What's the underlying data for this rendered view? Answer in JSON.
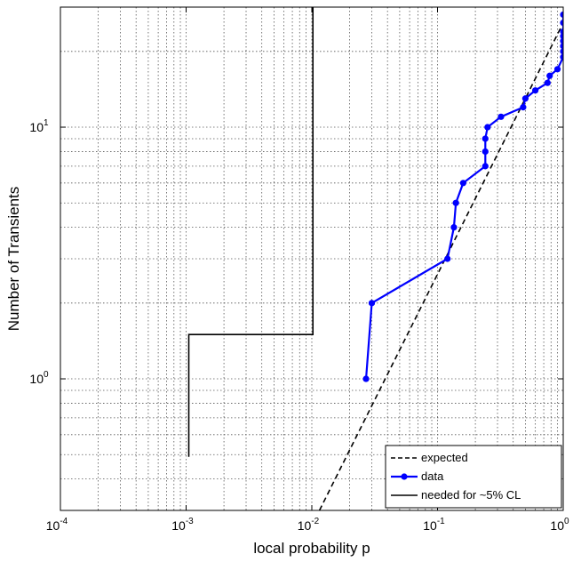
{
  "chart_data": {
    "type": "line",
    "title": "",
    "xlabel": "local probability p",
    "ylabel": "Number of Transients",
    "xscale": "log",
    "yscale": "log",
    "xlim": [
      0.0001,
      1
    ],
    "ylim": [
      0.3,
      30
    ],
    "grid": true,
    "legend_position": "bottom-right",
    "x_ticks": [
      {
        "base": "10",
        "exp": "-4",
        "value": 0.0001
      },
      {
        "base": "10",
        "exp": "-3",
        "value": 0.001
      },
      {
        "base": "10",
        "exp": "-2",
        "value": 0.01
      },
      {
        "base": "10",
        "exp": "-1",
        "value": 0.1
      },
      {
        "base": "10",
        "exp": "0",
        "value": 1
      }
    ],
    "y_ticks": [
      {
        "base": "10",
        "exp": "0",
        "value": 1
      },
      {
        "base": "10",
        "exp": "1",
        "value": 10
      }
    ],
    "series": [
      {
        "name": "expected",
        "style": "dashed",
        "color": "#000000",
        "x": [
          0.0115,
          1
        ],
        "y": [
          0.3,
          26
        ]
      },
      {
        "name": "data",
        "style": "solid-marker",
        "color": "#0000ff",
        "x": [
          0.027,
          0.03,
          0.12,
          0.135,
          0.14,
          0.16,
          0.24,
          0.24,
          0.24,
          0.25,
          0.32,
          0.48,
          0.5,
          0.6,
          0.75,
          0.78,
          0.9,
          1.0,
          1.0,
          1.0,
          1.0,
          1.0,
          1.0,
          1.0,
          1.0
        ],
        "y": [
          1,
          2,
          3,
          4,
          5,
          6,
          7,
          8,
          9,
          10,
          11,
          12,
          13,
          14,
          15,
          16,
          17,
          19,
          20,
          21,
          22,
          23,
          24,
          26,
          28
        ]
      },
      {
        "name": "needed for ~5% CL",
        "style": "solid",
        "color": "#000000",
        "x": [
          0.00105,
          0.00105,
          0.0102,
          0.0102
        ],
        "y": [
          0.49,
          1.5,
          1.5,
          30
        ]
      }
    ]
  }
}
